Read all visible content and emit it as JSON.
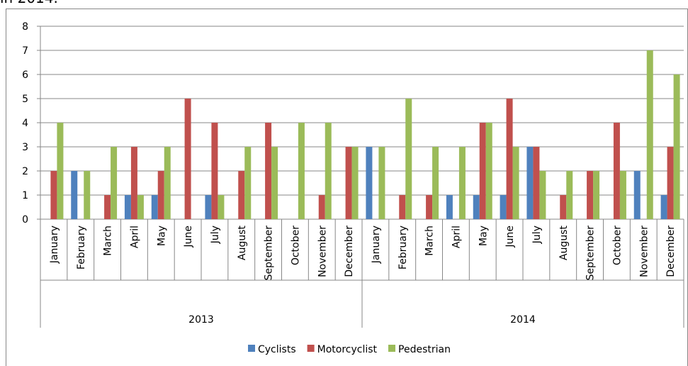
{
  "text_above": "in 2014.",
  "chart_data": {
    "type": "bar",
    "categories": [
      "January",
      "February",
      "March",
      "April",
      "May",
      "June",
      "July",
      "August",
      "September",
      "October",
      "November",
      "December",
      "January",
      "February",
      "March",
      "April",
      "May",
      "June",
      "July",
      "August",
      "September",
      "October",
      "November",
      "December"
    ],
    "category_groups": [
      "2013",
      "2014"
    ],
    "series": [
      {
        "name": "Cyclists",
        "color": "#4f81bd",
        "values": [
          0,
          2,
          0,
          1,
          1,
          0,
          1,
          0,
          0,
          0,
          0,
          0,
          3,
          0,
          0,
          1,
          1,
          1,
          3,
          0,
          0,
          0,
          2,
          1
        ]
      },
      {
        "name": "Motorcyclist",
        "color": "#c0504d",
        "values": [
          2,
          0,
          1,
          3,
          2,
          5,
          4,
          2,
          4,
          0,
          1,
          3,
          0,
          1,
          1,
          0,
          4,
          5,
          3,
          1,
          2,
          4,
          0,
          3
        ]
      },
      {
        "name": "Pedestrian",
        "color": "#9bbb59",
        "values": [
          4,
          2,
          3,
          1,
          3,
          0,
          1,
          3,
          3,
          4,
          4,
          3,
          3,
          5,
          3,
          3,
          4,
          3,
          2,
          2,
          2,
          2,
          7,
          6
        ]
      }
    ],
    "ylim": [
      0,
      8
    ],
    "yticks": [
      0,
      1,
      2,
      3,
      4,
      5,
      6,
      7,
      8
    ],
    "grid": true,
    "legend": "bottom"
  }
}
